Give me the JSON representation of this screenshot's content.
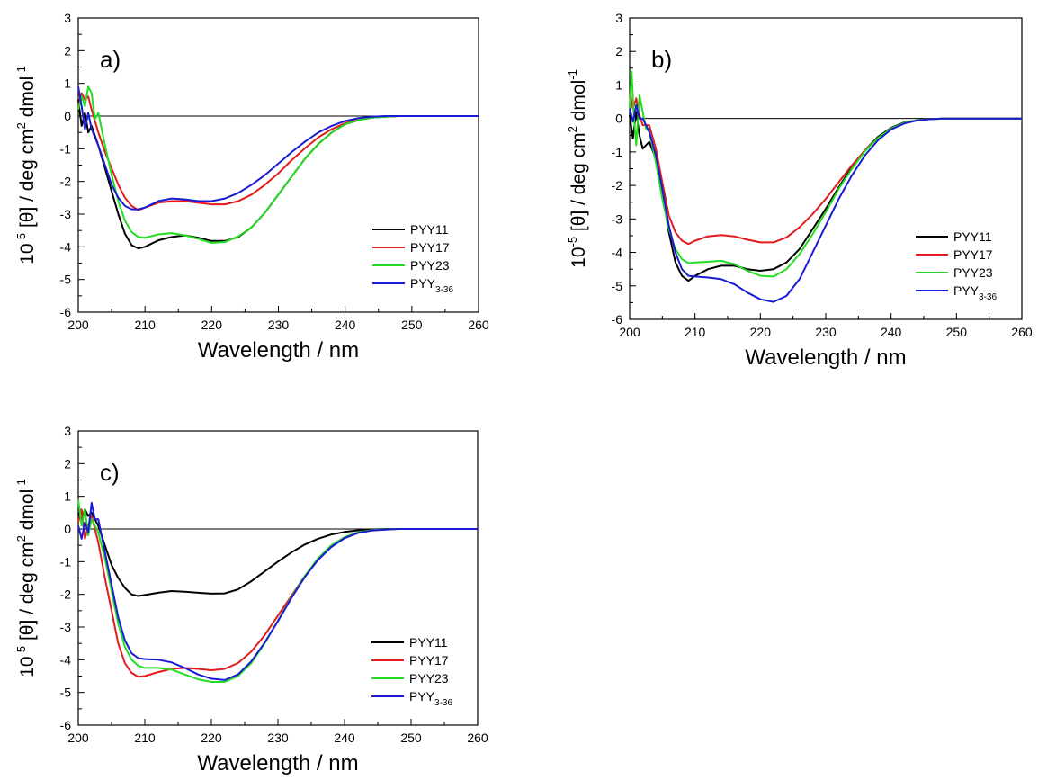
{
  "colors": {
    "PYY11": "#000000",
    "PYY17": "#e41a1c",
    "PYY23": "#22dd22",
    "PYY3-36": "#1b1bd6"
  },
  "chart_data": [
    {
      "type": "line",
      "panel_label": "a)",
      "xlabel": "Wavelength / nm",
      "ylabel": {
        "prefix": "10",
        "prefix_sup": "-5",
        "main": " [θ] / deg cm",
        "sup1": "2",
        "mid": " dmol",
        "sup2": "-1"
      },
      "xlim": [
        200,
        260
      ],
      "ylim": [
        -6,
        3
      ],
      "xticks": [
        "200",
        "210",
        "220",
        "230",
        "240",
        "250",
        "260"
      ],
      "yticks": [
        "-6",
        "-5",
        "-4",
        "-3",
        "-2",
        "-1",
        "0",
        "1",
        "2",
        "3"
      ],
      "zero_line": true,
      "legend_position": "bottom-right",
      "series": [
        {
          "name": "PYY11",
          "name_sub": "",
          "color": "#000000",
          "x": [
            200,
            200.5,
            201,
            201.5,
            202,
            203,
            204,
            205,
            206,
            207,
            208,
            209,
            210,
            212,
            214,
            216,
            218,
            220,
            222,
            224,
            226,
            228,
            230,
            232,
            234,
            236,
            238,
            240,
            242,
            244,
            246,
            248,
            250,
            255,
            260
          ],
          "y": [
            0.5,
            -0.3,
            0.1,
            -0.5,
            -0.3,
            -0.9,
            -1.6,
            -2.3,
            -3.0,
            -3.6,
            -3.95,
            -4.05,
            -4.0,
            -3.8,
            -3.7,
            -3.65,
            -3.72,
            -3.82,
            -3.82,
            -3.7,
            -3.4,
            -2.95,
            -2.4,
            -1.85,
            -1.3,
            -0.85,
            -0.5,
            -0.25,
            -0.12,
            -0.05,
            -0.02,
            0,
            0,
            0,
            0
          ]
        },
        {
          "name": "PYY17",
          "name_sub": "",
          "color": "#e41a1c",
          "x": [
            200,
            200.5,
            201,
            201.5,
            202,
            203,
            204,
            205,
            206,
            207,
            208,
            209,
            210,
            212,
            214,
            216,
            218,
            220,
            222,
            224,
            226,
            228,
            230,
            232,
            234,
            236,
            238,
            240,
            242,
            244,
            246,
            248,
            250,
            255,
            260
          ],
          "y": [
            0.2,
            0.7,
            0.5,
            0.6,
            0.2,
            -0.5,
            -1.1,
            -1.6,
            -2.1,
            -2.5,
            -2.75,
            -2.88,
            -2.8,
            -2.65,
            -2.6,
            -2.6,
            -2.65,
            -2.7,
            -2.7,
            -2.6,
            -2.4,
            -2.1,
            -1.75,
            -1.35,
            -0.98,
            -0.65,
            -0.4,
            -0.22,
            -0.1,
            -0.04,
            0,
            0,
            0,
            0,
            0
          ]
        },
        {
          "name": "PYY23",
          "name_sub": "",
          "color": "#22dd22",
          "x": [
            200,
            200.5,
            201,
            201.5,
            202,
            202.5,
            203,
            204,
            205,
            206,
            207,
            208,
            209,
            210,
            212,
            214,
            216,
            218,
            220,
            222,
            224,
            226,
            228,
            230,
            232,
            234,
            236,
            238,
            240,
            242,
            244,
            246,
            248,
            250,
            255,
            260
          ],
          "y": [
            0.2,
            0.6,
            0.3,
            0.9,
            0.7,
            -0.1,
            0.1,
            -0.9,
            -1.8,
            -2.6,
            -3.2,
            -3.55,
            -3.7,
            -3.72,
            -3.62,
            -3.58,
            -3.65,
            -3.75,
            -3.88,
            -3.85,
            -3.68,
            -3.4,
            -2.95,
            -2.4,
            -1.85,
            -1.3,
            -0.85,
            -0.5,
            -0.25,
            -0.12,
            -0.05,
            -0.02,
            0,
            0,
            0,
            0
          ]
        },
        {
          "name": "PYY",
          "name_sub": "3-36",
          "color": "#1b1bd6",
          "x": [
            200,
            200.5,
            201,
            201.5,
            202,
            203,
            204,
            205,
            206,
            207,
            208,
            209,
            210,
            212,
            214,
            216,
            218,
            220,
            222,
            224,
            226,
            228,
            230,
            232,
            234,
            236,
            238,
            240,
            242,
            244,
            246,
            248,
            250,
            255,
            260
          ],
          "y": [
            0.9,
            0.3,
            -0.4,
            0.1,
            -0.4,
            -0.9,
            -1.5,
            -2.1,
            -2.5,
            -2.75,
            -2.85,
            -2.85,
            -2.8,
            -2.6,
            -2.52,
            -2.55,
            -2.6,
            -2.6,
            -2.52,
            -2.35,
            -2.1,
            -1.8,
            -1.45,
            -1.1,
            -0.78,
            -0.5,
            -0.3,
            -0.15,
            -0.06,
            -0.02,
            0,
            0,
            0,
            0,
            0
          ]
        }
      ]
    },
    {
      "type": "line",
      "panel_label": "b)",
      "xlabel": "Wavelength / nm",
      "ylabel": {
        "prefix": "10",
        "prefix_sup": "-5",
        "main": " [θ] / deg cm",
        "sup1": "2",
        "mid": " dmol",
        "sup2": "-1"
      },
      "xlim": [
        200,
        260
      ],
      "ylim": [
        -6,
        3
      ],
      "xticks": [
        "200",
        "210",
        "220",
        "230",
        "240",
        "250",
        "260"
      ],
      "yticks": [
        "-6",
        "-5",
        "-4",
        "-3",
        "-2",
        "-1",
        "0",
        "1",
        "2",
        "3"
      ],
      "zero_line": true,
      "legend_position": "bottom-right",
      "series": [
        {
          "name": "PYY11",
          "name_sub": "",
          "color": "#000000",
          "x": [
            200,
            200.5,
            201,
            201.5,
            202,
            203,
            204,
            205,
            206,
            207,
            208,
            209,
            210,
            212,
            214,
            216,
            218,
            220,
            222,
            224,
            226,
            228,
            230,
            232,
            234,
            236,
            238,
            240,
            242,
            244,
            246,
            248,
            250,
            255,
            260
          ],
          "y": [
            0.1,
            -0.6,
            0.2,
            -0.5,
            -0.9,
            -0.7,
            -1.2,
            -2.2,
            -3.4,
            -4.3,
            -4.7,
            -4.85,
            -4.7,
            -4.5,
            -4.4,
            -4.4,
            -4.5,
            -4.55,
            -4.5,
            -4.3,
            -3.9,
            -3.3,
            -2.7,
            -2.05,
            -1.45,
            -0.95,
            -0.55,
            -0.28,
            -0.12,
            -0.05,
            -0.02,
            0,
            0,
            0,
            0
          ]
        },
        {
          "name": "PYY17",
          "name_sub": "",
          "color": "#e41a1c",
          "x": [
            200,
            200.5,
            201,
            201.5,
            202,
            203,
            204,
            205,
            206,
            207,
            208,
            209,
            210,
            212,
            214,
            216,
            218,
            220,
            222,
            224,
            226,
            228,
            230,
            232,
            234,
            236,
            238,
            240,
            242,
            244,
            246,
            248,
            250,
            255,
            260
          ],
          "y": [
            0.8,
            0.3,
            0.6,
            0.1,
            -0.2,
            -0.2,
            -0.9,
            -1.9,
            -2.9,
            -3.4,
            -3.65,
            -3.75,
            -3.65,
            -3.52,
            -3.48,
            -3.52,
            -3.62,
            -3.7,
            -3.7,
            -3.55,
            -3.25,
            -2.85,
            -2.4,
            -1.9,
            -1.4,
            -0.95,
            -0.58,
            -0.3,
            -0.14,
            -0.05,
            -0.02,
            0,
            0,
            0,
            0
          ]
        },
        {
          "name": "PYY23",
          "name_sub": "",
          "color": "#22dd22",
          "x": [
            200,
            200.3,
            200.6,
            201,
            201.5,
            202,
            202.5,
            203,
            204,
            205,
            206,
            207,
            208,
            209,
            210,
            212,
            214,
            216,
            218,
            220,
            222,
            224,
            226,
            228,
            230,
            232,
            234,
            236,
            238,
            240,
            242,
            244,
            246,
            248,
            250,
            255,
            260
          ],
          "y": [
            0.3,
            1.4,
            0.2,
            -0.8,
            0.7,
            0.2,
            -0.3,
            -0.4,
            -1.3,
            -2.4,
            -3.3,
            -3.9,
            -4.2,
            -4.32,
            -4.3,
            -4.28,
            -4.25,
            -4.35,
            -4.55,
            -4.7,
            -4.72,
            -4.5,
            -4.05,
            -3.45,
            -2.8,
            -2.1,
            -1.5,
            -0.98,
            -0.58,
            -0.3,
            -0.13,
            -0.05,
            -0.02,
            0,
            0,
            0,
            0
          ]
        },
        {
          "name": "PYY",
          "name_sub": "3-36",
          "color": "#1b1bd6",
          "x": [
            200,
            200.5,
            201,
            201.5,
            202,
            203,
            204,
            205,
            206,
            207,
            208,
            209,
            210,
            212,
            214,
            216,
            218,
            220,
            222,
            224,
            226,
            228,
            230,
            232,
            234,
            236,
            238,
            240,
            242,
            244,
            246,
            248,
            250,
            255,
            260
          ],
          "y": [
            0.3,
            -0.1,
            0.4,
            0,
            0,
            -0.4,
            -1.1,
            -2.1,
            -3.2,
            -4.0,
            -4.5,
            -4.7,
            -4.72,
            -4.75,
            -4.8,
            -4.95,
            -5.2,
            -5.4,
            -5.48,
            -5.3,
            -4.8,
            -4.0,
            -3.2,
            -2.4,
            -1.7,
            -1.1,
            -0.65,
            -0.33,
            -0.15,
            -0.06,
            -0.02,
            0,
            0,
            0,
            0
          ]
        }
      ]
    },
    {
      "type": "line",
      "panel_label": "c)",
      "xlabel": "Wavelength / nm",
      "ylabel": {
        "prefix": "10",
        "prefix_sup": "-5",
        "main": " [θ] / deg cm",
        "sup1": "2",
        "mid": " dmol",
        "sup2": "-1"
      },
      "xlim": [
        200,
        260
      ],
      "ylim": [
        -6,
        3
      ],
      "xticks": [
        "200",
        "210",
        "220",
        "230",
        "240",
        "250",
        "260"
      ],
      "yticks": [
        "-6",
        "-5",
        "-4",
        "-3",
        "-2",
        "-1",
        "0",
        "1",
        "2",
        "3"
      ],
      "zero_line": true,
      "legend_position": "bottom-right",
      "series": [
        {
          "name": "PYY11",
          "name_sub": "",
          "color": "#000000",
          "x": [
            200,
            200.5,
            201,
            201.5,
            202,
            203,
            204,
            205,
            206,
            207,
            208,
            209,
            210,
            212,
            214,
            216,
            218,
            220,
            222,
            224,
            226,
            228,
            230,
            232,
            234,
            236,
            238,
            240,
            242,
            244,
            246,
            248,
            250,
            255,
            260
          ],
          "y": [
            0.5,
            0.3,
            0.6,
            0.4,
            0.5,
            0.1,
            -0.5,
            -1.1,
            -1.5,
            -1.8,
            -2.0,
            -2.05,
            -2.02,
            -1.95,
            -1.9,
            -1.92,
            -1.95,
            -1.98,
            -1.97,
            -1.85,
            -1.6,
            -1.3,
            -1.0,
            -0.72,
            -0.48,
            -0.3,
            -0.17,
            -0.09,
            -0.04,
            -0.02,
            0,
            0,
            0,
            0,
            0
          ]
        },
        {
          "name": "PYY17",
          "name_sub": "",
          "color": "#e41a1c",
          "x": [
            200,
            200.5,
            201,
            201.5,
            202,
            203,
            204,
            205,
            206,
            207,
            208,
            209,
            210,
            212,
            214,
            216,
            218,
            220,
            222,
            224,
            226,
            228,
            230,
            232,
            234,
            236,
            238,
            240,
            242,
            244,
            246,
            248,
            250,
            255,
            260
          ],
          "y": [
            0.2,
            0.6,
            -0.3,
            0.1,
            0.4,
            -0.4,
            -1.5,
            -2.5,
            -3.5,
            -4.1,
            -4.4,
            -4.52,
            -4.5,
            -4.38,
            -4.28,
            -4.25,
            -4.28,
            -4.32,
            -4.28,
            -4.1,
            -3.75,
            -3.25,
            -2.65,
            -2.05,
            -1.45,
            -0.95,
            -0.55,
            -0.28,
            -0.12,
            -0.05,
            -0.02,
            0,
            0,
            0,
            0
          ]
        },
        {
          "name": "PYY23",
          "name_sub": "",
          "color": "#22dd22",
          "x": [
            200,
            200.5,
            201,
            201.5,
            202,
            203,
            204,
            205,
            206,
            207,
            208,
            209,
            210,
            212,
            214,
            216,
            218,
            220,
            222,
            224,
            226,
            228,
            230,
            232,
            234,
            236,
            238,
            240,
            242,
            244,
            246,
            248,
            250,
            255,
            260
          ],
          "y": [
            0.9,
            0.1,
            0.6,
            -0.2,
            0.3,
            -0.1,
            -0.9,
            -1.9,
            -2.9,
            -3.6,
            -4.0,
            -4.18,
            -4.25,
            -4.25,
            -4.3,
            -4.45,
            -4.6,
            -4.68,
            -4.68,
            -4.5,
            -4.1,
            -3.5,
            -2.8,
            -2.1,
            -1.45,
            -0.9,
            -0.5,
            -0.25,
            -0.1,
            -0.04,
            -0.01,
            0,
            0,
            0,
            0
          ]
        },
        {
          "name": "PYY",
          "name_sub": "3-36",
          "color": "#1b1bd6",
          "x": [
            200,
            200.5,
            201,
            201.5,
            202,
            202.5,
            203,
            204,
            205,
            206,
            207,
            208,
            209,
            210,
            212,
            214,
            216,
            218,
            220,
            222,
            224,
            226,
            228,
            230,
            232,
            234,
            236,
            238,
            240,
            242,
            244,
            246,
            248,
            250,
            255,
            260
          ],
          "y": [
            0.1,
            -0.3,
            0.2,
            -0.1,
            0.8,
            0.3,
            0.3,
            -0.7,
            -1.7,
            -2.7,
            -3.4,
            -3.8,
            -3.95,
            -3.98,
            -4.0,
            -4.08,
            -4.25,
            -4.45,
            -4.58,
            -4.62,
            -4.45,
            -4.05,
            -3.48,
            -2.82,
            -2.12,
            -1.48,
            -0.95,
            -0.55,
            -0.28,
            -0.12,
            -0.05,
            -0.02,
            0,
            0,
            0,
            0
          ]
        }
      ]
    }
  ]
}
